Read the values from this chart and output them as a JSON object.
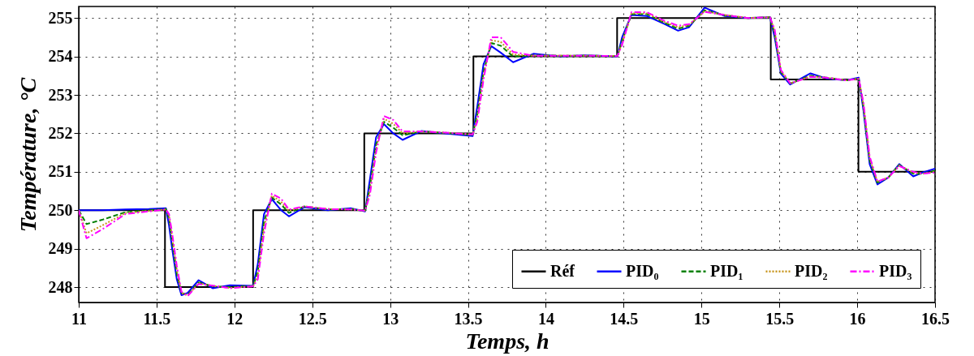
{
  "chart_data": {
    "type": "line",
    "xlabel": "Temps, h",
    "ylabel": "Température, °C",
    "xlim": [
      11,
      16.5
    ],
    "xticks": [
      11,
      11.5,
      12,
      12.5,
      13,
      13.5,
      14,
      14.5,
      15,
      15.5,
      16,
      16.5
    ],
    "ylim": [
      247.6,
      255.3
    ],
    "yticks": [
      248,
      249,
      250,
      251,
      252,
      253,
      254,
      255
    ],
    "grid": true,
    "legend": "bottom right",
    "marker": "none",
    "series": [
      {
        "name": "Réf",
        "type": "step",
        "color": "#000000",
        "line_style": "solid",
        "x": [
          11,
          11.554,
          12.12,
          12.834,
          13.535,
          14.458,
          15.445,
          16.008,
          16.5
        ],
        "values": [
          250,
          248,
          250,
          252,
          254,
          255,
          253.4,
          251,
          251
        ]
      },
      {
        "name": "PID₀",
        "color": "#0000ff",
        "line_style": "solid",
        "x": [
          11,
          11.05,
          11.15,
          11.3,
          11.45,
          11.56,
          11.58,
          11.6,
          11.63,
          11.66,
          11.7,
          11.77,
          11.86,
          11.97,
          12.12,
          12.15,
          12.19,
          12.24,
          12.3,
          12.35,
          12.45,
          12.6,
          12.75,
          12.84,
          12.87,
          12.91,
          12.96,
          13.02,
          13.08,
          13.2,
          13.35,
          13.53,
          13.56,
          13.6,
          13.65,
          13.71,
          13.79,
          13.92,
          14.1,
          14.25,
          14.46,
          14.49,
          14.55,
          14.65,
          14.76,
          14.85,
          14.92,
          15.02,
          15.15,
          15.3,
          15.44,
          15.47,
          15.51,
          15.57,
          15.7,
          15.8,
          15.93,
          16.01,
          16.04,
          16.08,
          16.13,
          16.2,
          16.27,
          16.36,
          16.42,
          16.5
        ],
        "values": [
          250,
          250,
          250,
          250.02,
          250.03,
          250.05,
          249.6,
          249.0,
          248.2,
          247.79,
          247.85,
          248.18,
          247.97,
          248.05,
          248.03,
          248.6,
          249.9,
          250.29,
          250.0,
          249.84,
          250.08,
          250.0,
          250.05,
          249.97,
          250.8,
          251.9,
          252.24,
          252.0,
          251.83,
          252.06,
          252.0,
          251.93,
          252.7,
          253.8,
          254.27,
          254.1,
          253.85,
          254.07,
          254.0,
          254.03,
          254.0,
          254.5,
          255.08,
          255.05,
          254.85,
          254.67,
          254.76,
          255.27,
          255.05,
          255.0,
          255.02,
          254.5,
          253.55,
          253.27,
          253.56,
          253.43,
          253.38,
          253.45,
          252.6,
          251.2,
          250.67,
          250.85,
          251.2,
          250.88,
          250.98,
          251.08
        ]
      },
      {
        "name": "PID₁",
        "color": "#008000",
        "line_style": "dashed",
        "x": [
          11,
          11.05,
          11.15,
          11.3,
          11.45,
          11.56,
          11.58,
          11.6,
          11.63,
          11.66,
          11.7,
          11.77,
          11.86,
          11.97,
          12.12,
          12.15,
          12.19,
          12.24,
          12.3,
          12.35,
          12.45,
          12.6,
          12.75,
          12.84,
          12.87,
          12.91,
          12.96,
          13.02,
          13.08,
          13.2,
          13.35,
          13.53,
          13.56,
          13.6,
          13.65,
          13.71,
          13.79,
          13.92,
          14.1,
          14.25,
          14.46,
          14.49,
          14.55,
          14.65,
          14.76,
          14.85,
          14.92,
          15.02,
          15.15,
          15.3,
          15.44,
          15.47,
          15.51,
          15.57,
          15.7,
          15.8,
          15.93,
          16.01,
          16.04,
          16.08,
          16.13,
          16.2,
          16.27,
          16.36,
          16.42,
          16.5
        ],
        "values": [
          250,
          249.64,
          249.75,
          249.95,
          250.0,
          250.03,
          249.8,
          249.2,
          248.35,
          247.85,
          247.8,
          248.12,
          248.02,
          248.0,
          248.03,
          248.4,
          249.7,
          250.33,
          250.15,
          249.93,
          250.1,
          250.02,
          250.03,
          249.98,
          250.6,
          251.7,
          252.3,
          252.15,
          251.95,
          252.05,
          252.01,
          251.96,
          252.5,
          253.6,
          254.35,
          254.28,
          254.0,
          254.03,
          254.02,
          254.02,
          254.01,
          254.4,
          255.1,
          255.1,
          254.88,
          254.72,
          254.8,
          255.2,
          255.07,
          255.0,
          255.02,
          254.6,
          253.6,
          253.3,
          253.5,
          253.45,
          253.38,
          253.42,
          252.7,
          251.3,
          250.72,
          250.85,
          251.18,
          250.95,
          250.95,
          251.03
        ]
      },
      {
        "name": "PID₂",
        "color": "#c8961e",
        "line_style": "dotted",
        "x": [
          11,
          11.05,
          11.15,
          11.3,
          11.45,
          11.56,
          11.58,
          11.6,
          11.63,
          11.66,
          11.7,
          11.77,
          11.86,
          11.97,
          12.12,
          12.15,
          12.19,
          12.24,
          12.3,
          12.35,
          12.45,
          12.6,
          12.75,
          12.84,
          12.87,
          12.91,
          12.96,
          13.02,
          13.08,
          13.2,
          13.35,
          13.53,
          13.56,
          13.6,
          13.65,
          13.71,
          13.79,
          13.92,
          14.1,
          14.25,
          14.46,
          14.49,
          14.55,
          14.65,
          14.76,
          14.85,
          14.92,
          15.02,
          15.15,
          15.3,
          15.44,
          15.47,
          15.51,
          15.57,
          15.7,
          15.8,
          15.93,
          16.01,
          16.04,
          16.08,
          16.13,
          16.2,
          16.27,
          16.36,
          16.42,
          16.5
        ],
        "values": [
          250,
          249.4,
          249.6,
          249.93,
          249.98,
          250.02,
          249.85,
          249.3,
          248.45,
          247.85,
          247.78,
          248.1,
          248.03,
          247.98,
          248.02,
          248.3,
          249.55,
          250.38,
          250.22,
          249.98,
          250.1,
          250.03,
          250.02,
          249.99,
          250.5,
          251.6,
          252.38,
          252.25,
          252.0,
          252.05,
          252.02,
          251.97,
          252.4,
          253.5,
          254.42,
          254.38,
          254.05,
          254.02,
          254.02,
          254.02,
          254.01,
          254.35,
          255.12,
          255.12,
          254.9,
          254.76,
          254.82,
          255.18,
          255.08,
          255.0,
          255.02,
          254.65,
          253.62,
          253.3,
          253.48,
          253.45,
          253.38,
          253.42,
          252.75,
          251.35,
          250.74,
          250.85,
          251.16,
          250.98,
          250.95,
          251.0
        ]
      },
      {
        "name": "PID₃",
        "color": "#ff00ff",
        "line_style": "dashdot",
        "x": [
          11,
          11.05,
          11.15,
          11.3,
          11.45,
          11.56,
          11.58,
          11.6,
          11.63,
          11.66,
          11.7,
          11.77,
          11.86,
          11.97,
          12.12,
          12.15,
          12.19,
          12.24,
          12.3,
          12.35,
          12.45,
          12.6,
          12.75,
          12.84,
          12.87,
          12.91,
          12.96,
          13.02,
          13.08,
          13.2,
          13.35,
          13.53,
          13.56,
          13.6,
          13.65,
          13.71,
          13.79,
          13.92,
          14.1,
          14.25,
          14.46,
          14.49,
          14.55,
          14.65,
          14.76,
          14.85,
          14.92,
          15.02,
          15.15,
          15.3,
          15.44,
          15.47,
          15.51,
          15.57,
          15.7,
          15.8,
          15.93,
          16.01,
          16.04,
          16.08,
          16.13,
          16.2,
          16.27,
          16.36,
          16.42,
          16.5
        ],
        "values": [
          250,
          249.27,
          249.5,
          249.9,
          249.97,
          250.02,
          249.9,
          249.4,
          248.55,
          247.88,
          247.77,
          248.08,
          248.04,
          247.97,
          248.02,
          248.2,
          249.4,
          250.43,
          250.3,
          250.02,
          250.1,
          250.03,
          250.02,
          249.99,
          250.4,
          251.5,
          252.45,
          252.35,
          252.05,
          252.05,
          252.02,
          251.97,
          252.3,
          253.4,
          254.5,
          254.5,
          254.12,
          254.02,
          254.02,
          254.02,
          254.01,
          254.3,
          255.15,
          255.15,
          254.93,
          254.8,
          254.84,
          255.16,
          255.08,
          255.0,
          255.02,
          254.7,
          253.65,
          253.3,
          253.47,
          253.45,
          253.38,
          253.42,
          252.8,
          251.4,
          250.75,
          250.85,
          251.15,
          251.0,
          250.95,
          250.98
        ]
      }
    ]
  }
}
